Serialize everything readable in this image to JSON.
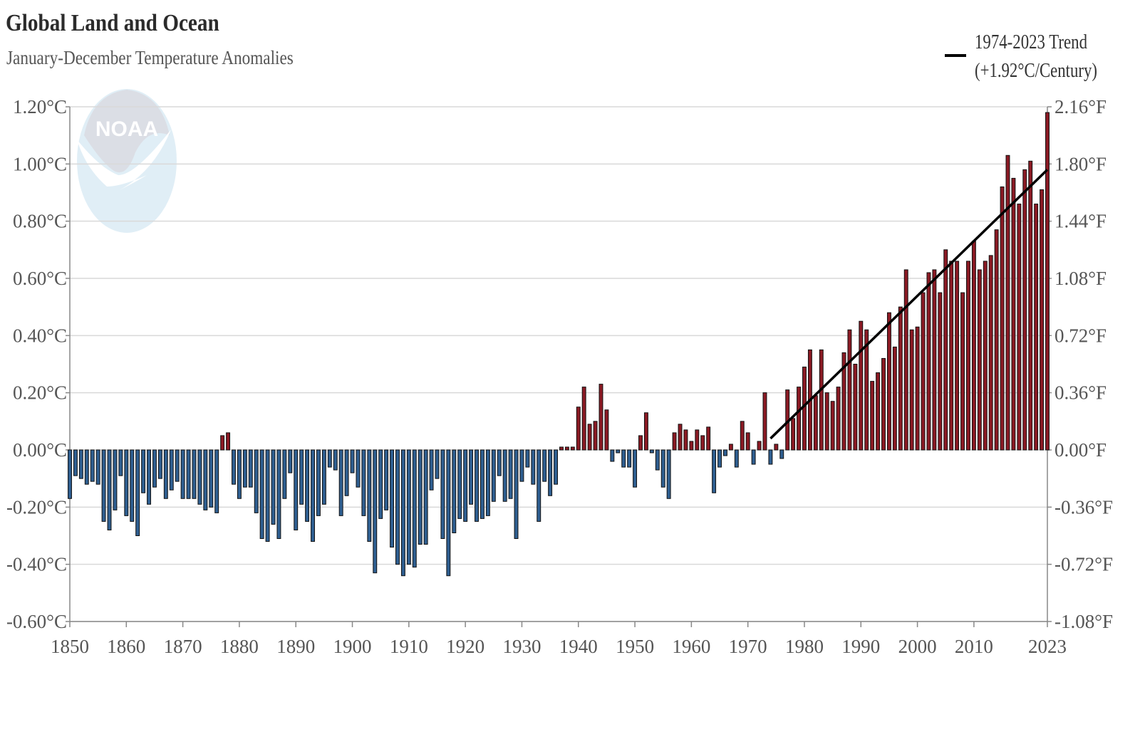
{
  "chart_data": {
    "type": "bar",
    "title": "Global Land and Ocean",
    "subtitle": "January-December Temperature Anomalies",
    "legend": {
      "label_line1": "1974-2023 Trend",
      "label_line2": "(+1.92°C/Century)",
      "placement": "top-right",
      "line_color": "#000000"
    },
    "logo_text": "NOAA",
    "x_start_year": 1850,
    "x_end_year": 2023,
    "x_tick_labels": [
      "1850",
      "1860",
      "1870",
      "1880",
      "1890",
      "1900",
      "1910",
      "1920",
      "1930",
      "1940",
      "1950",
      "1960",
      "1970",
      "1980",
      "1990",
      "2000",
      "2010",
      "2023"
    ],
    "y_left_ticks": [
      {
        "value": 1.2,
        "label": "1.20°C"
      },
      {
        "value": 1.0,
        "label": "1.00°C"
      },
      {
        "value": 0.8,
        "label": "0.80°C"
      },
      {
        "value": 0.6,
        "label": "0.60°C"
      },
      {
        "value": 0.4,
        "label": "0.40°C"
      },
      {
        "value": 0.2,
        "label": "0.20°C"
      },
      {
        "value": 0.0,
        "label": "0.00°C"
      },
      {
        "value": -0.2,
        "label": "-0.20°C"
      },
      {
        "value": -0.4,
        "label": "-0.40°C"
      },
      {
        "value": -0.6,
        "label": "-0.60°C"
      }
    ],
    "y_right_ticks": [
      {
        "value": 1.2,
        "label": "2.16°F"
      },
      {
        "value": 1.0,
        "label": "1.80°F"
      },
      {
        "value": 0.8,
        "label": "1.44°F"
      },
      {
        "value": 0.6,
        "label": "1.08°F"
      },
      {
        "value": 0.4,
        "label": "0.72°F"
      },
      {
        "value": 0.2,
        "label": "0.36°F"
      },
      {
        "value": 0.0,
        "label": "0.00°F"
      },
      {
        "value": -0.2,
        "label": "-0.36°F"
      },
      {
        "value": -0.4,
        "label": "-0.72°F"
      },
      {
        "value": -0.6,
        "label": "-1.08°F"
      }
    ],
    "ylim": [
      -0.6,
      1.2
    ],
    "grid": true,
    "colors": {
      "positive": "#8b1a24",
      "negative": "#2f5f91",
      "bar_stroke": "#111111",
      "grid": "#d9d9d9",
      "axis": "#888888",
      "trend": "#000000"
    },
    "trend_line": {
      "x": [
        1974,
        2023
      ],
      "y": [
        0.04,
        0.98
      ]
    },
    "years": [
      1850,
      1851,
      1852,
      1853,
      1854,
      1855,
      1856,
      1857,
      1858,
      1859,
      1860,
      1861,
      1862,
      1863,
      1864,
      1865,
      1866,
      1867,
      1868,
      1869,
      1870,
      1871,
      1872,
      1873,
      1874,
      1875,
      1876,
      1877,
      1878,
      1879,
      1880,
      1881,
      1882,
      1883,
      1884,
      1885,
      1886,
      1887,
      1888,
      1889,
      1890,
      1891,
      1892,
      1893,
      1894,
      1895,
      1896,
      1897,
      1898,
      1899,
      1900,
      1901,
      1902,
      1903,
      1904,
      1905,
      1906,
      1907,
      1908,
      1909,
      1910,
      1911,
      1912,
      1913,
      1914,
      1915,
      1916,
      1917,
      1918,
      1919,
      1920,
      1921,
      1922,
      1923,
      1924,
      1925,
      1926,
      1927,
      1928,
      1929,
      1930,
      1931,
      1932,
      1933,
      1934,
      1935,
      1936,
      1937,
      1938,
      1939,
      1940,
      1941,
      1942,
      1943,
      1944,
      1945,
      1946,
      1947,
      1948,
      1949,
      1950,
      1951,
      1952,
      1953,
      1954,
      1955,
      1956,
      1957,
      1958,
      1959,
      1960,
      1961,
      1962,
      1963,
      1964,
      1965,
      1966,
      1967,
      1968,
      1969,
      1970,
      1971,
      1972,
      1973,
      1974,
      1975,
      1976,
      1977,
      1978,
      1979,
      1980,
      1981,
      1982,
      1983,
      1984,
      1985,
      1986,
      1987,
      1988,
      1989,
      1990,
      1991,
      1992,
      1993,
      1994,
      1995,
      1996,
      1997,
      1998,
      1999,
      2000,
      2001,
      2002,
      2003,
      2004,
      2005,
      2006,
      2007,
      2008,
      2009,
      2010,
      2011,
      2012,
      2013,
      2014,
      2015,
      2016,
      2017,
      2018,
      2019,
      2020,
      2021,
      2022,
      2023
    ],
    "values": [
      -0.17,
      -0.09,
      -0.1,
      -0.12,
      -0.11,
      -0.12,
      -0.25,
      -0.28,
      -0.21,
      -0.09,
      -0.23,
      -0.25,
      -0.3,
      -0.15,
      -0.19,
      -0.13,
      -0.1,
      -0.17,
      -0.14,
      -0.11,
      -0.17,
      -0.17,
      -0.17,
      -0.19,
      -0.21,
      -0.2,
      -0.22,
      0.05,
      0.06,
      -0.12,
      -0.17,
      -0.13,
      -0.13,
      -0.22,
      -0.31,
      -0.32,
      -0.26,
      -0.31,
      -0.17,
      -0.08,
      -0.28,
      -0.19,
      -0.25,
      -0.32,
      -0.23,
      -0.19,
      -0.06,
      -0.07,
      -0.23,
      -0.16,
      -0.08,
      -0.13,
      -0.23,
      -0.32,
      -0.43,
      -0.24,
      -0.21,
      -0.34,
      -0.4,
      -0.44,
      -0.4,
      -0.41,
      -0.33,
      -0.33,
      -0.14,
      -0.1,
      -0.31,
      -0.44,
      -0.29,
      -0.24,
      -0.25,
      -0.19,
      -0.25,
      -0.24,
      -0.23,
      -0.18,
      -0.09,
      -0.18,
      -0.17,
      -0.31,
      -0.11,
      -0.06,
      -0.12,
      -0.25,
      -0.11,
      -0.16,
      -0.12,
      0.01,
      0.01,
      0.01,
      0.15,
      0.22,
      0.09,
      0.1,
      0.23,
      0.14,
      -0.04,
      -0.01,
      -0.06,
      -0.06,
      -0.13,
      0.05,
      0.13,
      -0.01,
      -0.07,
      -0.13,
      -0.17,
      0.06,
      0.09,
      0.07,
      0.03,
      0.07,
      0.05,
      0.08,
      -0.15,
      -0.06,
      -0.02,
      0.02,
      -0.06,
      0.1,
      0.06,
      -0.05,
      0.03,
      0.2,
      -0.05,
      0.02,
      -0.03,
      0.21,
      0.11,
      0.22,
      0.29,
      0.35,
      0.19,
      0.35,
      0.2,
      0.17,
      0.22,
      0.34,
      0.42,
      0.3,
      0.45,
      0.42,
      0.24,
      0.27,
      0.32,
      0.48,
      0.36,
      0.5,
      0.63,
      0.42,
      0.43,
      0.55,
      0.62,
      0.63,
      0.55,
      0.7,
      0.66,
      0.66,
      0.55,
      0.66,
      0.73,
      0.63,
      0.66,
      0.68,
      0.77,
      0.92,
      1.03,
      0.95,
      0.86,
      0.98,
      1.01,
      0.86,
      0.91,
      1.18
    ]
  }
}
